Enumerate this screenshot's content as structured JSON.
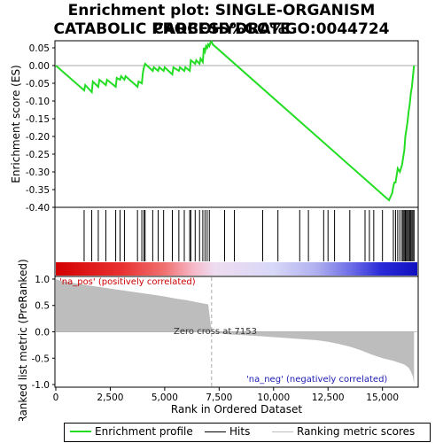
{
  "title_line1": "Enrichment plot: SINGLE-ORGANISM CARBOHYDRATE",
  "title_line2": "CATABOLIC PROCESS%GO%GO:0044724",
  "colors": {
    "profile": "#22dd22",
    "hits": "#000000",
    "metric_fill": "#bdbdbd",
    "zero_line": "#aaaaaa"
  },
  "chart_data": [
    {
      "type": "line",
      "name": "enrichment-score-panel",
      "ylabel": "Enrichment score (ES)",
      "ylim": [
        -0.4,
        0.07
      ],
      "yticks": [
        0.05,
        0.0,
        -0.05,
        -0.1,
        -0.15,
        -0.2,
        -0.25,
        -0.3,
        -0.35,
        -0.4
      ],
      "ytick_labels": [
        "0.05",
        "0.00",
        "-0.05",
        "-0.10",
        "-0.15",
        "-0.20",
        "-0.25",
        "-0.30",
        "-0.35",
        "-0.40"
      ],
      "xlim": [
        0,
        16600
      ],
      "series": [
        {
          "x": [
            0,
            1300,
            1350,
            1650,
            1700,
            1950,
            2000,
            2300,
            2350,
            2750,
            2800,
            2950,
            3000,
            3150,
            3200,
            3750,
            3800,
            3950,
            4000,
            4050,
            4100,
            4450,
            4500,
            4700,
            4750,
            4950,
            5000,
            5350,
            5400,
            5650,
            5700,
            5900,
            5950,
            6150,
            6200,
            6400,
            6450,
            6600,
            6650,
            6750,
            6800,
            6850,
            6900,
            6950,
            7000,
            7050,
            7100,
            7153,
            7200,
            15300,
            15450,
            15500,
            15550,
            15600,
            15650,
            15700,
            15800,
            15850,
            15900,
            15950,
            16000,
            16050,
            16100,
            16150,
            16200,
            16250,
            16300,
            16350,
            16400,
            16450
          ],
          "y": [
            0.0,
            -0.07,
            -0.055,
            -0.075,
            -0.045,
            -0.06,
            -0.04,
            -0.055,
            -0.04,
            -0.06,
            -0.035,
            -0.04,
            -0.03,
            -0.04,
            -0.03,
            -0.06,
            -0.045,
            -0.05,
            -0.02,
            -0.005,
            0.005,
            -0.015,
            -0.005,
            -0.015,
            -0.005,
            -0.015,
            -0.005,
            -0.025,
            -0.005,
            -0.015,
            -0.005,
            -0.015,
            -0.005,
            -0.015,
            0.015,
            0.005,
            0.015,
            0.005,
            0.02,
            0.01,
            0.05,
            0.04,
            0.055,
            0.05,
            0.06,
            0.055,
            0.065,
            0.068,
            0.06,
            -0.38,
            -0.36,
            -0.34,
            -0.33,
            -0.33,
            -0.31,
            -0.29,
            -0.3,
            -0.29,
            -0.28,
            -0.26,
            -0.24,
            -0.2,
            -0.18,
            -0.16,
            -0.13,
            -0.11,
            -0.08,
            -0.06,
            -0.03,
            0.0
          ]
        }
      ]
    },
    {
      "type": "hits",
      "name": "hits-panel",
      "positions": [
        1300,
        1650,
        1950,
        2300,
        2750,
        2950,
        3150,
        3750,
        3950,
        4050,
        4100,
        4450,
        4700,
        4950,
        5350,
        5650,
        5900,
        6150,
        6200,
        6400,
        6600,
        6750,
        6850,
        6950,
        7050,
        7750,
        8200,
        9500,
        10200,
        11200,
        11600,
        12300,
        12500,
        12800,
        13500,
        14200,
        14400,
        14600,
        15000,
        15500,
        15600,
        15700,
        15800,
        15900,
        15950,
        16000,
        16050,
        16100,
        16150,
        16200,
        16250,
        16300,
        16350,
        16400,
        16450
      ]
    },
    {
      "type": "area",
      "name": "ranked-metric-panel",
      "ylabel": "Ranked list metric (PreRanked)",
      "xlabel": "Rank in Ordered Dataset",
      "ylim": [
        -1.05,
        1.05
      ],
      "yticks": [
        1.0,
        0.5,
        0.0,
        -0.5,
        -1.0
      ],
      "ytick_labels": [
        "1.0",
        "0.5",
        "0.0",
        "-0.5",
        "-1.0"
      ],
      "xlim": [
        0,
        16600
      ],
      "xticks": [
        0,
        2500,
        5000,
        7500,
        10000,
        12500,
        15000
      ],
      "xtick_labels": [
        "0",
        "2,500",
        "5,000",
        "7,500",
        "10,000",
        "12,500",
        "15,000"
      ],
      "series": [
        {
          "x": [
            0,
            200,
            600,
            1000,
            1500,
            2000,
            2500,
            3000,
            3500,
            4000,
            4500,
            5000,
            5500,
            6000,
            6500,
            7000,
            7153,
            7500,
            8000,
            9000,
            10000,
            11000,
            12000,
            12500,
            13000,
            13500,
            14000,
            14500,
            15000,
            15500,
            16000,
            16200,
            16300,
            16400,
            16450
          ],
          "y": [
            1.0,
            0.97,
            0.94,
            0.91,
            0.88,
            0.85,
            0.82,
            0.79,
            0.76,
            0.73,
            0.7,
            0.67,
            0.63,
            0.6,
            0.56,
            0.52,
            0.0,
            -0.03,
            -0.05,
            -0.07,
            -0.1,
            -0.13,
            -0.16,
            -0.19,
            -0.23,
            -0.28,
            -0.35,
            -0.43,
            -0.5,
            -0.55,
            -0.62,
            -0.68,
            -0.75,
            -0.85,
            -0.98
          ]
        }
      ],
      "zero_cross_value": 7153,
      "annotations": {
        "zero_cross": "Zero cross at 7153",
        "pos": "'na_pos' (positively correlated)",
        "neg": "'na_neg' (negatively correlated)"
      }
    }
  ],
  "legend": {
    "profile": "Enrichment profile",
    "hits": "Hits",
    "metric": "Ranking metric scores"
  }
}
